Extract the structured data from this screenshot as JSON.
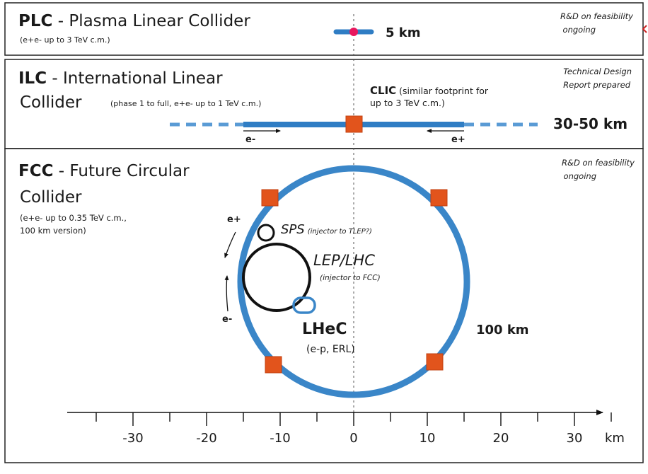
{
  "colors": {
    "blue": "#2f7dc4",
    "dashed_blue": "#5a9bd5",
    "orange": "#e2541c",
    "pink": "#e8175d",
    "frame": "#222222",
    "text": "#1a1a1a",
    "accent_red": "#cc2222"
  },
  "plc": {
    "title_bold": "PLC",
    "title_rest": " - Plasma Linear Collider",
    "note": "(e+e- up to 3 TeV c.m.)",
    "status_line1": "R&D on feasibility",
    "status_line2": "ongoing",
    "length": "5 km"
  },
  "ilc": {
    "title_bold": "ILC",
    "title_rest": " - International Linear",
    "title_line2": "Collider",
    "note": "(phase 1 to full, e+e- up to 1 TeV c.m.)",
    "status_line1": "Technical Design",
    "status_line2": "Report prepared",
    "clic_bold": "CLIC",
    "clic_rest": " (similar footprint for",
    "clic_line2": "up to 3 TeV c.m.)",
    "length": "30-50 km",
    "left_beam": "e-",
    "right_beam": "e+"
  },
  "fcc": {
    "title_bold": "FCC",
    "title_rest": " - Future Circular",
    "title_line2": "Collider",
    "note_line1": "(e+e- up to 0.35 TeV c.m.,",
    "note_line2": "100 km version)",
    "status_line1": "R&D on feasibility",
    "status_line2": "ongoing",
    "length": "100 km",
    "sps_label": "SPS",
    "sps_note": "(injector to TLEP?)",
    "lep_label": "LEP/LHC",
    "lep_note": "(injector to FCC)",
    "lhec_label": "LHeC",
    "lhec_note": "(e-p, ERL)",
    "beam_top": "e+",
    "beam_bottom": "e-"
  },
  "axis": {
    "unit": "km",
    "ticks": [
      -30,
      -20,
      -10,
      0,
      10,
      20,
      30
    ],
    "tick_labels": [
      "-30",
      "-20",
      "-10",
      "0",
      "10",
      "20",
      "30"
    ]
  }
}
